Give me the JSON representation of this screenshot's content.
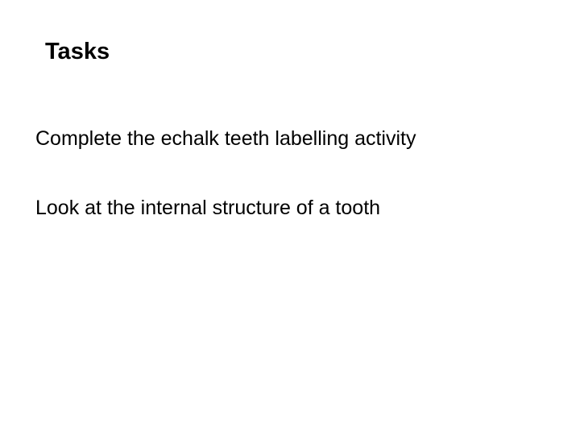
{
  "document": {
    "heading": "Tasks",
    "lines": [
      "Complete the echalk teeth labelling activity",
      "Look at the internal structure of a tooth"
    ],
    "background_color": "#ffffff",
    "text_color": "#000000",
    "heading_fontsize": 29,
    "heading_fontweight": "bold",
    "body_fontsize": 25,
    "body_fontweight": "normal",
    "font_family": "Arial, Helvetica, sans-serif"
  }
}
